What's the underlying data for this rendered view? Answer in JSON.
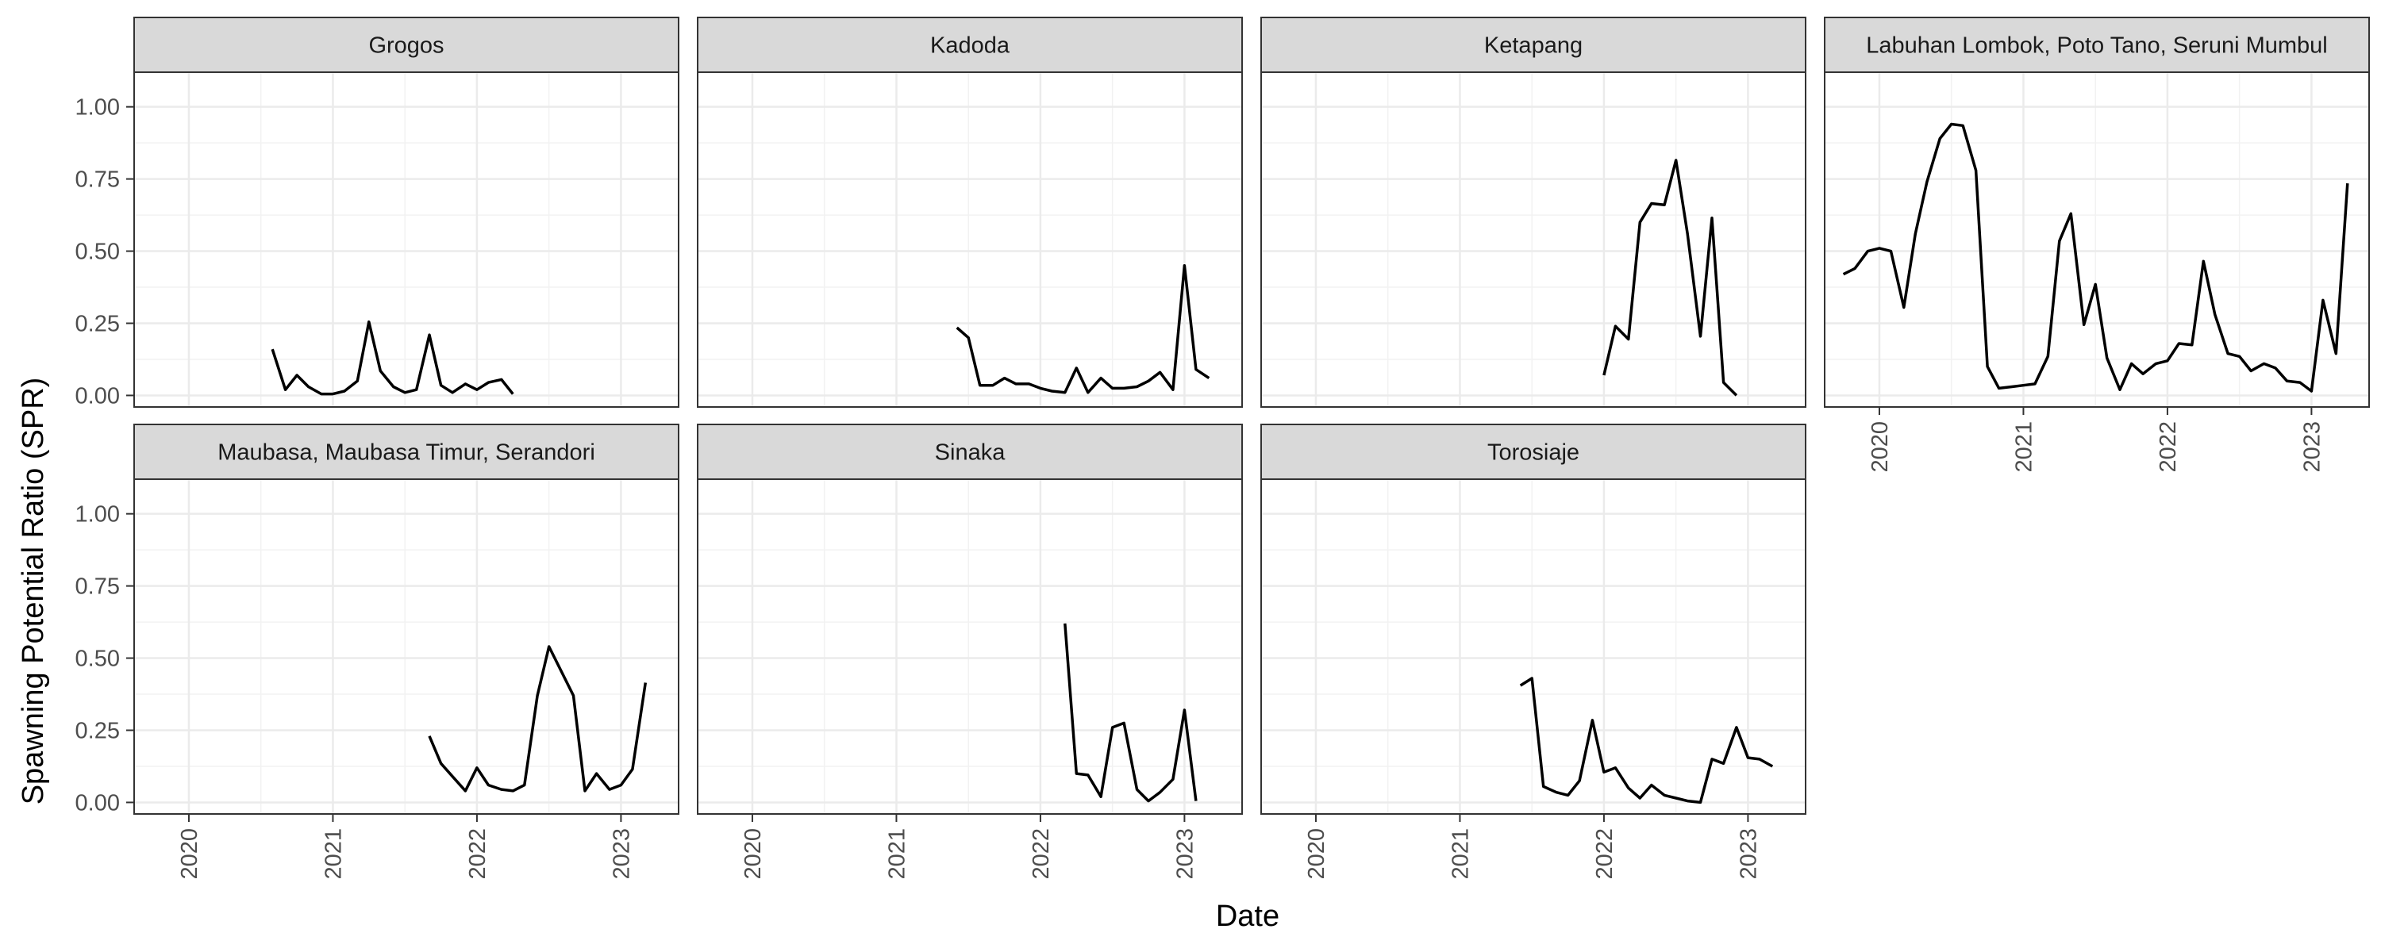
{
  "chart_data": {
    "type": "line",
    "layout": "facet_wrap",
    "xlabel": "Date",
    "ylabel": "Spawning Potential Ratio (SPR)",
    "xlim": [
      2019.62,
      2023.4
    ],
    "ylim": [
      -0.04,
      1.12
    ],
    "x_ticks": [
      2020,
      2021,
      2022,
      2023
    ],
    "x_tick_labels": [
      "2020",
      "2021",
      "2022",
      "2023"
    ],
    "y_ticks": [
      0,
      0.25,
      0.5,
      0.75,
      1.0
    ],
    "y_tick_labels": [
      "0.00",
      "0.25",
      "0.50",
      "0.75",
      "1.00"
    ],
    "grid": true,
    "line_color": "#000000",
    "panels": [
      {
        "title": "Grogos",
        "x": [
          2020.58,
          2020.67,
          2020.75,
          2020.83,
          2020.92,
          2021.0,
          2021.08,
          2021.17,
          2021.25,
          2021.33,
          2021.42,
          2021.5,
          2021.58,
          2021.67,
          2021.75,
          2021.83,
          2021.92,
          2022.0,
          2022.08,
          2022.17,
          2022.25
        ],
        "y": [
          0.16,
          0.02,
          0.07,
          0.03,
          0.005,
          0.005,
          0.015,
          0.05,
          0.255,
          0.085,
          0.03,
          0.01,
          0.02,
          0.21,
          0.035,
          0.01,
          0.04,
          0.02,
          0.045,
          0.055,
          0.005
        ]
      },
      {
        "title": "Kadoda",
        "x": [
          2021.42,
          2021.5,
          2021.58,
          2021.67,
          2021.75,
          2021.83,
          2021.92,
          2022.0,
          2022.08,
          2022.17,
          2022.25,
          2022.33,
          2022.42,
          2022.5,
          2022.58,
          2022.67,
          2022.75,
          2022.83,
          2022.92,
          2023.0,
          2023.08,
          2023.17
        ],
        "y": [
          0.235,
          0.2,
          0.035,
          0.035,
          0.06,
          0.04,
          0.04,
          0.025,
          0.015,
          0.01,
          0.095,
          0.01,
          0.06,
          0.025,
          0.025,
          0.03,
          0.05,
          0.08,
          0.02,
          0.45,
          0.09,
          0.06
        ]
      },
      {
        "title": "Ketapang",
        "x": [
          2022.0,
          2022.08,
          2022.17,
          2022.25,
          2022.33,
          2022.42,
          2022.5,
          2022.58,
          2022.67,
          2022.75,
          2022.83,
          2022.92
        ],
        "y": [
          0.07,
          0.24,
          0.195,
          0.6,
          0.665,
          0.66,
          0.815,
          0.56,
          0.205,
          0.615,
          0.045,
          0.0
        ]
      },
      {
        "title": "Labuhan Lombok, Poto Tano, Seruni Mumbul",
        "x": [
          2019.75,
          2019.83,
          2019.92,
          2020.0,
          2020.08,
          2020.17,
          2020.25,
          2020.33,
          2020.42,
          2020.5,
          2020.58,
          2020.67,
          2020.75,
          2020.83,
          2020.92,
          2021.0,
          2021.08,
          2021.17,
          2021.25,
          2021.33,
          2021.42,
          2021.5,
          2021.58,
          2021.67,
          2021.75,
          2021.83,
          2021.92,
          2022.0,
          2022.08,
          2022.17,
          2022.25,
          2022.33,
          2022.42,
          2022.5,
          2022.58,
          2022.67,
          2022.75,
          2022.83,
          2022.92,
          2023.0,
          2023.08,
          2023.17,
          2023.25
        ],
        "y": [
          0.42,
          0.44,
          0.5,
          0.51,
          0.5,
          0.305,
          0.56,
          0.74,
          0.89,
          0.94,
          0.935,
          0.78,
          0.1,
          0.025,
          0.03,
          0.035,
          0.04,
          0.135,
          0.535,
          0.63,
          0.245,
          0.385,
          0.13,
          0.02,
          0.11,
          0.075,
          0.11,
          0.12,
          0.18,
          0.175,
          0.465,
          0.28,
          0.145,
          0.135,
          0.085,
          0.11,
          0.095,
          0.05,
          0.045,
          0.015,
          0.33,
          0.145,
          0.735
        ]
      },
      {
        "title": "Maubasa, Maubasa Timur, Serandori",
        "x": [
          2021.67,
          2021.75,
          2021.83,
          2021.92,
          2022.0,
          2022.08,
          2022.17,
          2022.25,
          2022.33,
          2022.42,
          2022.5,
          2022.67,
          2022.75,
          2022.83,
          2022.92,
          2023.0,
          2023.08,
          2023.17
        ],
        "y": [
          0.23,
          0.135,
          0.09,
          0.04,
          0.12,
          0.06,
          0.045,
          0.04,
          0.06,
          0.37,
          0.54,
          0.37,
          0.04,
          0.1,
          0.045,
          0.06,
          0.115,
          0.415
        ]
      },
      {
        "title": "Sinaka",
        "x": [
          2022.17,
          2022.25,
          2022.33,
          2022.42,
          2022.5,
          2022.58,
          2022.67,
          2022.75,
          2022.83,
          2022.92,
          2023.0,
          2023.08
        ],
        "y": [
          0.62,
          0.1,
          0.095,
          0.02,
          0.26,
          0.275,
          0.045,
          0.005,
          0.035,
          0.08,
          0.32,
          0.005
        ]
      },
      {
        "title": "Torosiaje",
        "x": [
          2021.42,
          2021.5,
          2021.58,
          2021.67,
          2021.75,
          2021.83,
          2021.92,
          2022.0,
          2022.08,
          2022.17,
          2022.25,
          2022.33,
          2022.42,
          2022.5,
          2022.58,
          2022.67,
          2022.75,
          2022.83,
          2022.92,
          2023.0,
          2023.08,
          2023.17
        ],
        "y": [
          0.405,
          0.43,
          0.055,
          0.035,
          0.025,
          0.075,
          0.285,
          0.105,
          0.12,
          0.05,
          0.015,
          0.06,
          0.025,
          0.015,
          0.005,
          0.0,
          0.15,
          0.135,
          0.26,
          0.155,
          0.15,
          0.125
        ]
      }
    ]
  }
}
